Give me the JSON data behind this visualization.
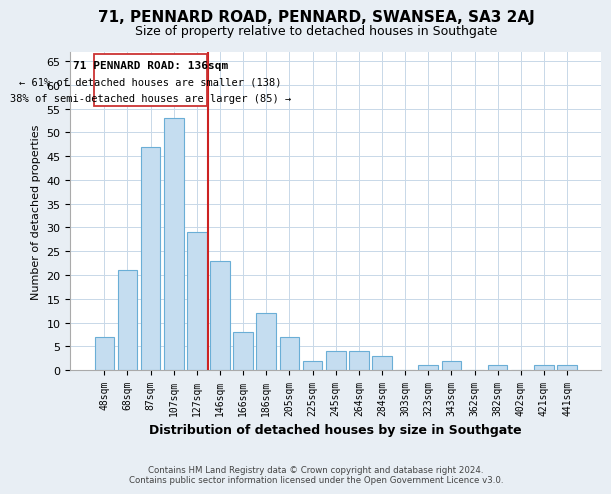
{
  "title": "71, PENNARD ROAD, PENNARD, SWANSEA, SA3 2AJ",
  "subtitle": "Size of property relative to detached houses in Southgate",
  "xlabel": "Distribution of detached houses by size in Southgate",
  "ylabel": "Number of detached properties",
  "categories": [
    "48sqm",
    "68sqm",
    "87sqm",
    "107sqm",
    "127sqm",
    "146sqm",
    "166sqm",
    "186sqm",
    "205sqm",
    "225sqm",
    "245sqm",
    "264sqm",
    "284sqm",
    "303sqm",
    "323sqm",
    "343sqm",
    "362sqm",
    "382sqm",
    "402sqm",
    "421sqm",
    "441sqm"
  ],
  "values": [
    7,
    21,
    47,
    53,
    29,
    23,
    8,
    12,
    7,
    2,
    4,
    4,
    3,
    0,
    1,
    2,
    0,
    1,
    0,
    1,
    1
  ],
  "bar_color": "#c5ddf0",
  "bar_edge_color": "#6aaed6",
  "redline_index": 4.5,
  "annotation_title": "71 PENNARD ROAD: 136sqm",
  "annotation_line1": "← 61% of detached houses are smaller (138)",
  "annotation_line2": "38% of semi-detached houses are larger (85) →",
  "ylim": [
    0,
    67
  ],
  "yticks": [
    0,
    5,
    10,
    15,
    20,
    25,
    30,
    35,
    40,
    45,
    50,
    55,
    60,
    65
  ],
  "footer_line1": "Contains HM Land Registry data © Crown copyright and database right 2024.",
  "footer_line2": "Contains public sector information licensed under the Open Government Licence v3.0.",
  "bg_color": "#e8eef4",
  "plot_bg_color": "#ffffff",
  "ann_box_color": "#cc3333",
  "grid_color": "#c8d8e8",
  "title_fontsize": 11,
  "subtitle_fontsize": 9,
  "ylabel_fontsize": 8,
  "xlabel_fontsize": 9,
  "tick_fontsize": 8,
  "xtick_fontsize": 7
}
